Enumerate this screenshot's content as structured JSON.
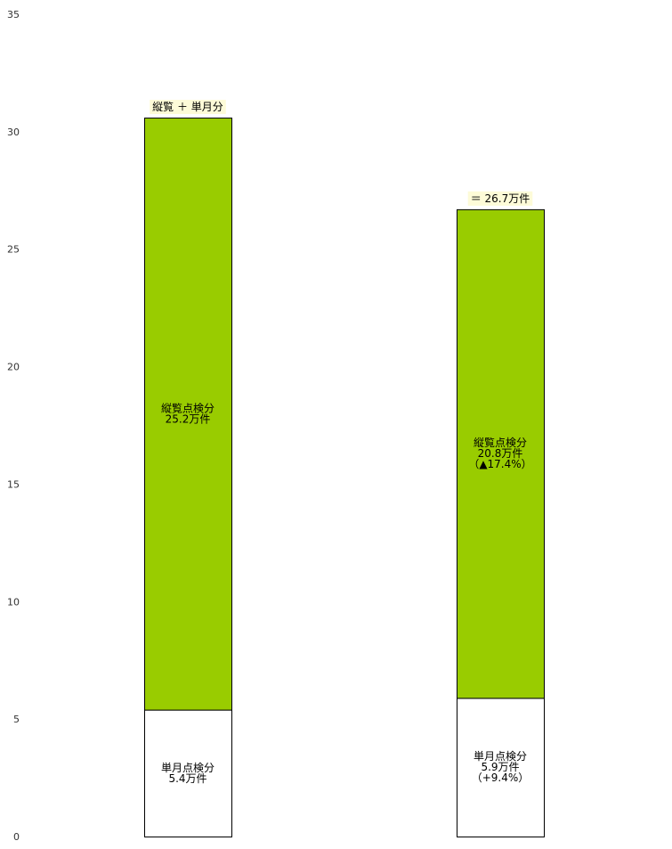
{
  "chart_data": {
    "type": "bar",
    "stacked": true,
    "ylim": [
      0,
      35
    ],
    "yticks": [
      0,
      5,
      10,
      15,
      20,
      25,
      30,
      35
    ],
    "grid": false,
    "colors": {
      "monthly": "#ffffff",
      "aggregate": "#99cc00",
      "annotation_bg": "#fdfbd8",
      "outline": "#000000"
    },
    "bars": [
      {
        "top_label": "縦覧 ＋ 単月分",
        "segments": [
          {
            "value": 5.4,
            "lines": [
              "単月点検分",
              "5.4万件"
            ]
          },
          {
            "value": 25.2,
            "lines": [
              "縦覧点検分",
              "25.2万件"
            ]
          }
        ]
      },
      {
        "top_label": "＝ 26.7万件",
        "segments": [
          {
            "value": 5.9,
            "lines": [
              "単月点検分",
              "5.9万件",
              "（+9.4%）"
            ]
          },
          {
            "value": 20.8,
            "lines": [
              "縦覧点検分",
              "20.8万件",
              "（▲17.4%）"
            ]
          }
        ]
      }
    ]
  }
}
